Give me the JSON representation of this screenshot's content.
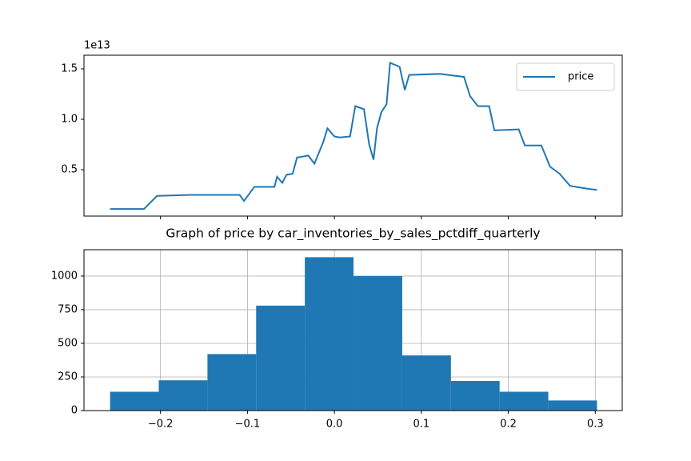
{
  "chart_data": [
    {
      "type": "line",
      "y_offset_label": "1e13",
      "x": [
        -0.258,
        -0.219,
        -0.204,
        -0.164,
        -0.146,
        -0.109,
        -0.104,
        -0.092,
        -0.069,
        -0.066,
        -0.06,
        -0.055,
        -0.048,
        -0.043,
        -0.03,
        -0.023,
        -0.013,
        -0.008,
        0.0,
        0.006,
        0.018,
        0.024,
        0.034,
        0.04,
        0.045,
        0.049,
        0.054,
        0.06,
        0.064,
        0.075,
        0.081,
        0.086,
        0.121,
        0.149,
        0.156,
        0.165,
        0.178,
        0.184,
        0.212,
        0.219,
        0.238,
        0.248,
        0.259,
        0.271,
        0.292,
        0.302
      ],
      "series": [
        {
          "name": "price",
          "color": "#1f77b4",
          "values": [
            0.11,
            0.11,
            0.24,
            0.25,
            0.25,
            0.25,
            0.19,
            0.33,
            0.33,
            0.43,
            0.37,
            0.45,
            0.46,
            0.62,
            0.64,
            0.56,
            0.77,
            0.91,
            0.83,
            0.82,
            0.83,
            1.13,
            1.1,
            0.75,
            0.6,
            0.91,
            1.07,
            1.15,
            1.56,
            1.52,
            1.29,
            1.44,
            1.45,
            1.42,
            1.23,
            1.13,
            1.13,
            0.89,
            0.9,
            0.74,
            0.74,
            0.53,
            0.46,
            0.34,
            0.31,
            0.3
          ]
        }
      ],
      "xlim": [
        -0.288,
        0.331
      ],
      "xticks": [
        -0.2,
        -0.1,
        0,
        0.1,
        0.2,
        0.3
      ],
      "ylim": [
        0.04,
        1.635
      ],
      "yticks": [
        0.5,
        {
          "value": 1.0,
          "label": "1.0"
        },
        1.5
      ],
      "legend": "upper right"
    },
    {
      "type": "histogram",
      "title": "Graph of price by car_inventories_by_sales_pctdiff_quarterly",
      "bins": [
        -0.258,
        -0.202,
        -0.146,
        -0.09,
        -0.034,
        0.022,
        0.078,
        0.134,
        0.19,
        0.246,
        0.302
      ],
      "values": [
        140,
        225,
        420,
        780,
        1140,
        1000,
        410,
        220,
        140,
        75
      ],
      "color": "#1f77b4",
      "xlim": [
        -0.288,
        0.331
      ],
      "xticks": [
        {
          "value": -0.2,
          "label": "−0.2"
        },
        {
          "value": -0.1,
          "label": "−0.1"
        },
        {
          "value": 0,
          "label": "0.0"
        },
        0.1,
        0.2,
        0.3
      ],
      "ylim": [
        0,
        1196
      ],
      "yticks": [
        0,
        250,
        500,
        750,
        1000
      ],
      "grid": true
    }
  ]
}
